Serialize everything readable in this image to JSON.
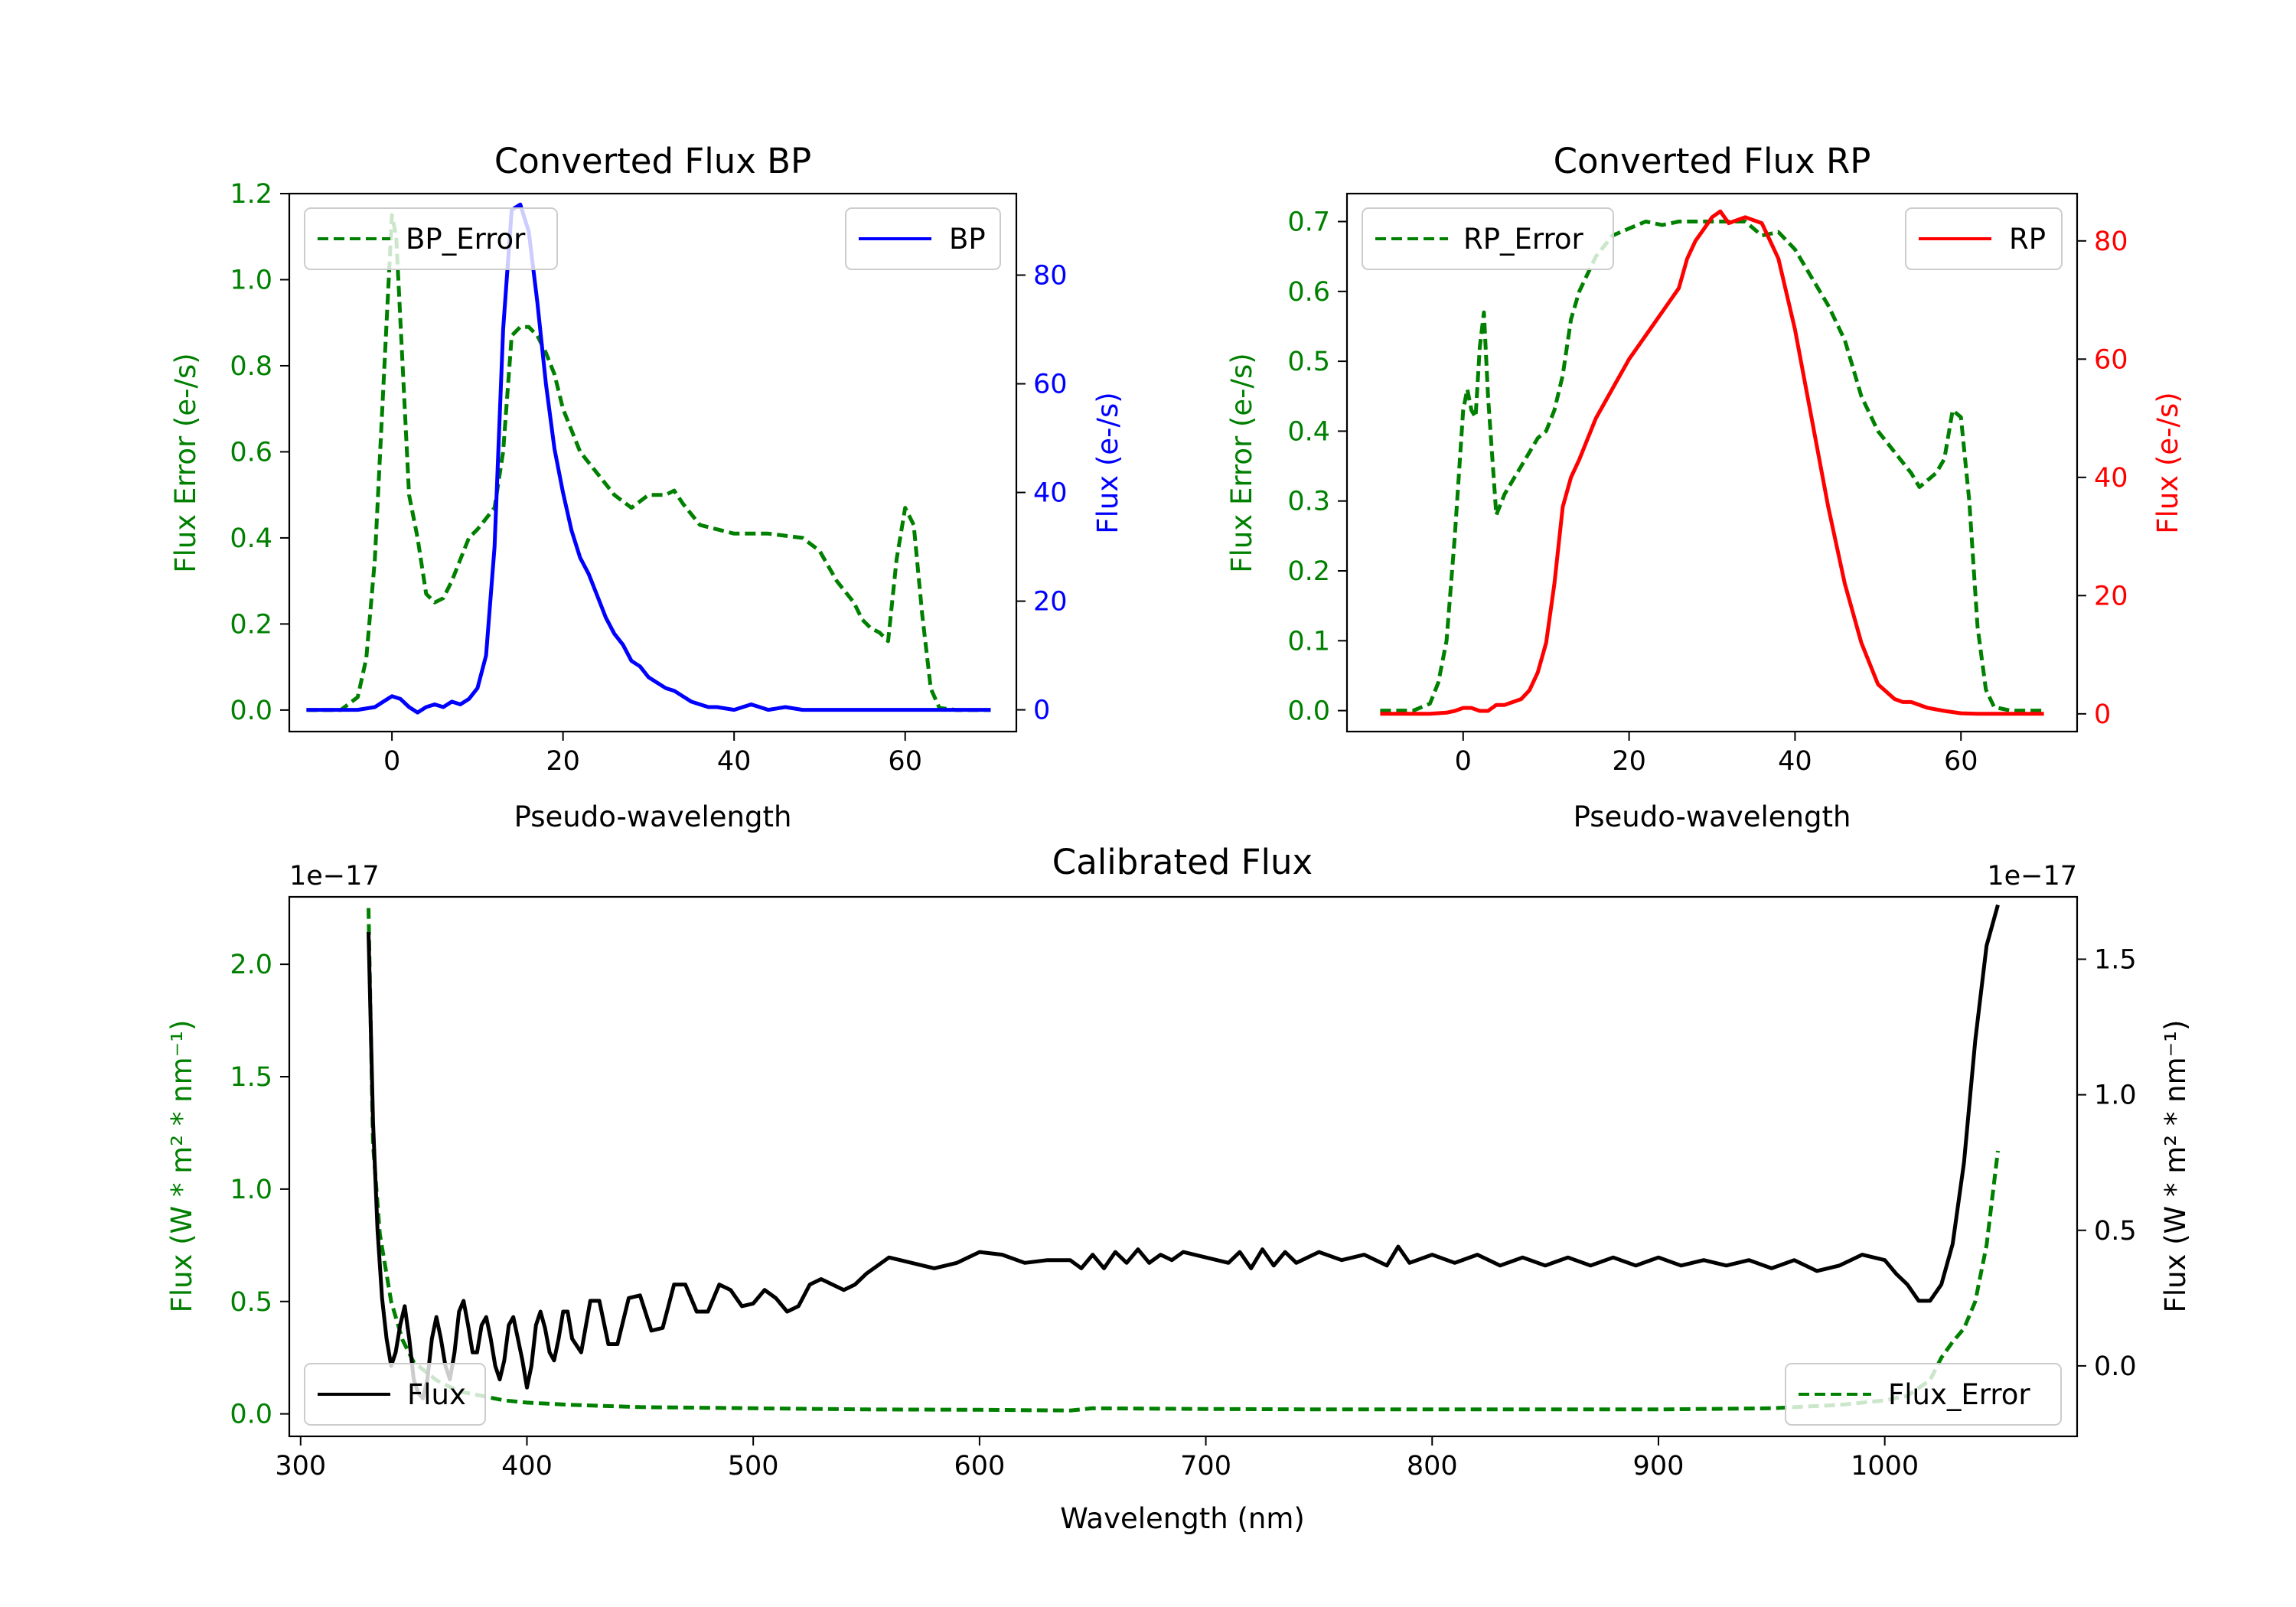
{
  "colors": {
    "error": "#008000",
    "bp": "#0000ff",
    "rp": "#ff0000",
    "flux": "#000000",
    "axis": "#000000"
  },
  "chart_data": [
    {
      "id": "bp",
      "type": "line",
      "title": "Converted Flux BP",
      "xlabel": "Pseudo-wavelength",
      "ylabel_left": "Flux Error (e-/s)",
      "ylabel_right": "Flux (e-/s)",
      "xlim": [
        -12,
        73
      ],
      "ylim_left": [
        -0.05,
        1.2
      ],
      "ylim_right": [
        -4,
        95
      ],
      "xticks": [
        {
          "v": 0,
          "label": "0"
        },
        {
          "v": 20,
          "label": "20"
        },
        {
          "v": 40,
          "label": "40"
        },
        {
          "v": 60,
          "label": "60"
        }
      ],
      "yticks_left": [
        {
          "v": 0,
          "label": "0.0"
        },
        {
          "v": 0.2,
          "label": "0.2"
        },
        {
          "v": 0.4,
          "label": "0.4"
        },
        {
          "v": 0.6,
          "label": "0.6"
        },
        {
          "v": 0.8,
          "label": "0.8"
        },
        {
          "v": 1.0,
          "label": "1.0"
        },
        {
          "v": 1.2,
          "label": "1.2"
        }
      ],
      "yticks_right": [
        {
          "v": 0,
          "label": "0"
        },
        {
          "v": 20,
          "label": "20"
        },
        {
          "v": 40,
          "label": "40"
        },
        {
          "v": 60,
          "label": "60"
        },
        {
          "v": 80,
          "label": "80"
        }
      ],
      "legend_left": {
        "label": "BP_Error",
        "position": "upper left"
      },
      "legend_right": {
        "label": "BP",
        "position": "upper right"
      },
      "series": [
        {
          "name": "BP_Error",
          "axis": "left",
          "style": "dashed",
          "color": "#008000",
          "x": [
            -10,
            -6,
            -4,
            -3,
            -2,
            -1,
            0,
            0.5,
            1,
            1.5,
            2,
            3,
            4,
            5,
            6,
            7,
            8,
            9,
            10,
            12,
            13,
            14,
            15,
            16,
            17,
            18,
            19,
            20,
            22,
            24,
            26,
            28,
            30,
            32,
            33,
            34,
            36,
            38,
            40,
            42,
            44,
            46,
            48,
            50,
            52,
            54,
            55,
            56,
            57,
            58,
            59,
            60,
            61,
            62,
            63,
            64,
            66,
            68,
            70
          ],
          "y": [
            0,
            0,
            0.03,
            0.12,
            0.35,
            0.75,
            1.15,
            1.1,
            0.9,
            0.7,
            0.5,
            0.4,
            0.27,
            0.25,
            0.26,
            0.3,
            0.35,
            0.4,
            0.42,
            0.47,
            0.6,
            0.87,
            0.89,
            0.89,
            0.87,
            0.83,
            0.78,
            0.7,
            0.6,
            0.55,
            0.5,
            0.47,
            0.5,
            0.5,
            0.51,
            0.48,
            0.43,
            0.42,
            0.41,
            0.41,
            0.41,
            0.405,
            0.4,
            0.37,
            0.3,
            0.25,
            0.21,
            0.19,
            0.18,
            0.16,
            0.35,
            0.47,
            0.43,
            0.22,
            0.05,
            0.005,
            0,
            0,
            0
          ]
        },
        {
          "name": "BP",
          "axis": "right",
          "style": "solid",
          "color": "#0000ff",
          "x": [
            -10,
            -6,
            -4,
            -2,
            -1,
            0,
            1,
            2,
            3,
            4,
            5,
            6,
            7,
            8,
            9,
            10,
            11,
            12,
            13,
            14,
            15,
            16,
            17,
            18,
            19,
            20,
            21,
            22,
            23,
            24,
            25,
            26,
            27,
            28,
            29,
            30,
            31,
            32,
            33,
            34,
            35,
            36,
            37,
            38,
            40,
            42,
            44,
            46,
            48,
            50,
            52,
            55,
            60,
            65,
            70
          ],
          "y": [
            0,
            0,
            0,
            0.5,
            1.5,
            2.5,
            2,
            0.5,
            -0.5,
            0.5,
            1,
            0.5,
            1.5,
            1,
            2,
            4,
            10,
            30,
            70,
            92,
            93,
            88,
            75,
            60,
            48,
            40,
            33,
            28,
            25,
            21,
            17,
            14,
            12,
            9,
            8,
            6,
            5,
            4,
            3.5,
            2.5,
            1.5,
            1,
            0.5,
            0.5,
            0,
            1,
            0,
            0.5,
            0,
            0,
            0,
            0,
            0,
            0,
            0
          ]
        }
      ]
    },
    {
      "id": "rp",
      "type": "line",
      "title": "Converted Flux RP",
      "xlabel": "Pseudo-wavelength",
      "ylabel_left": "Flux Error (e-/s)",
      "ylabel_right": "Flux (e-/s)",
      "xlim": [
        -14,
        74
      ],
      "ylim_left": [
        -0.03,
        0.74
      ],
      "ylim_right": [
        -3,
        88
      ],
      "xticks": [
        {
          "v": 0,
          "label": "0"
        },
        {
          "v": 20,
          "label": "20"
        },
        {
          "v": 40,
          "label": "40"
        },
        {
          "v": 60,
          "label": "60"
        }
      ],
      "yticks_left": [
        {
          "v": 0,
          "label": "0.0"
        },
        {
          "v": 0.1,
          "label": "0.1"
        },
        {
          "v": 0.2,
          "label": "0.2"
        },
        {
          "v": 0.3,
          "label": "0.3"
        },
        {
          "v": 0.4,
          "label": "0.4"
        },
        {
          "v": 0.5,
          "label": "0.5"
        },
        {
          "v": 0.6,
          "label": "0.6"
        },
        {
          "v": 0.7,
          "label": "0.7"
        }
      ],
      "yticks_right": [
        {
          "v": 0,
          "label": "0"
        },
        {
          "v": 20,
          "label": "20"
        },
        {
          "v": 40,
          "label": "40"
        },
        {
          "v": 60,
          "label": "60"
        },
        {
          "v": 80,
          "label": "80"
        }
      ],
      "legend_left": {
        "label": "RP_Error",
        "position": "upper left"
      },
      "legend_right": {
        "label": "RP",
        "position": "upper right"
      },
      "series": [
        {
          "name": "RP_Error",
          "axis": "left",
          "style": "dashed",
          "color": "#008000",
          "x": [
            -10,
            -6,
            -4,
            -3,
            -2,
            -1,
            0,
            0.5,
            1,
            1.5,
            2,
            2.5,
            3,
            4,
            5,
            6,
            7,
            8,
            9,
            10,
            11,
            12,
            13,
            14,
            16,
            18,
            20,
            22,
            24,
            26,
            28,
            30,
            32,
            34,
            36,
            38,
            40,
            42,
            44,
            46,
            48,
            50,
            52,
            54,
            55,
            56,
            57,
            58,
            59,
            60,
            61,
            62,
            63,
            64,
            66,
            68,
            70
          ],
          "y": [
            0,
            0,
            0.01,
            0.04,
            0.1,
            0.25,
            0.43,
            0.46,
            0.43,
            0.42,
            0.52,
            0.57,
            0.45,
            0.28,
            0.31,
            0.33,
            0.35,
            0.37,
            0.39,
            0.4,
            0.43,
            0.48,
            0.56,
            0.6,
            0.65,
            0.68,
            0.69,
            0.7,
            0.695,
            0.7,
            0.7,
            0.7,
            0.7,
            0.7,
            0.68,
            0.685,
            0.66,
            0.62,
            0.58,
            0.53,
            0.45,
            0.4,
            0.37,
            0.34,
            0.32,
            0.33,
            0.34,
            0.36,
            0.43,
            0.42,
            0.3,
            0.12,
            0.03,
            0.005,
            0,
            0,
            0
          ]
        },
        {
          "name": "RP",
          "axis": "right",
          "style": "solid",
          "color": "#ff0000",
          "x": [
            -10,
            -4,
            -2,
            -1,
            0,
            1,
            2,
            3,
            4,
            5,
            6,
            7,
            8,
            9,
            10,
            11,
            12,
            13,
            14,
            16,
            18,
            20,
            22,
            24,
            26,
            27,
            28,
            29,
            30,
            31,
            32,
            34,
            36,
            37,
            38,
            40,
            42,
            44,
            46,
            48,
            50,
            52,
            53,
            54,
            56,
            58,
            60,
            62,
            65,
            70
          ],
          "y": [
            0,
            0,
            0.2,
            0.5,
            1,
            1,
            0.5,
            0.5,
            1.5,
            1.5,
            2,
            2.5,
            4,
            7,
            12,
            22,
            35,
            40,
            43,
            50,
            55,
            60,
            64,
            68,
            72,
            77,
            80,
            82,
            84,
            85,
            83,
            84,
            83,
            80,
            77,
            65,
            50,
            35,
            22,
            12,
            5,
            2.5,
            2,
            2,
            1,
            0.5,
            0.1,
            0,
            0,
            0
          ]
        }
      ]
    },
    {
      "id": "calibrated",
      "type": "line",
      "title": "Calibrated Flux",
      "xlabel": "Wavelength (nm)",
      "ylabel_left": "Flux (W * m² * nm⁻¹)",
      "ylabel_right": "Flux (W * m² * nm⁻¹)",
      "offset_left": "1e−17",
      "offset_right": "1e−17",
      "xlim": [
        295,
        1085
      ],
      "ylim_left": [
        -0.1,
        2.3
      ],
      "ylim_right": [
        -0.26,
        1.73
      ],
      "xticks": [
        {
          "v": 300,
          "label": "300"
        },
        {
          "v": 400,
          "label": "400"
        },
        {
          "v": 500,
          "label": "500"
        },
        {
          "v": 600,
          "label": "600"
        },
        {
          "v": 700,
          "label": "700"
        },
        {
          "v": 800,
          "label": "800"
        },
        {
          "v": 900,
          "label": "900"
        },
        {
          "v": 1000,
          "label": "1000"
        }
      ],
      "yticks_left": [
        {
          "v": 0,
          "label": "0.0"
        },
        {
          "v": 0.5,
          "label": "0.5"
        },
        {
          "v": 1.0,
          "label": "1.0"
        },
        {
          "v": 1.5,
          "label": "1.5"
        },
        {
          "v": 2.0,
          "label": "2.0"
        }
      ],
      "yticks_right": [
        {
          "v": 0,
          "label": "0.0"
        },
        {
          "v": 0.5,
          "label": "0.5"
        },
        {
          "v": 1.0,
          "label": "1.0"
        },
        {
          "v": 1.5,
          "label": "1.5"
        }
      ],
      "legend_left": {
        "label": "Flux",
        "position": "lower left"
      },
      "legend_right": {
        "label": "Flux_Error",
        "position": "lower right"
      },
      "series": [
        {
          "name": "Flux_Error",
          "axis": "left",
          "style": "dashed",
          "color": "#008000",
          "x": [
            330,
            332,
            335,
            340,
            345,
            350,
            360,
            370,
            380,
            390,
            400,
            420,
            450,
            500,
            550,
            600,
            640,
            650,
            700,
            750,
            800,
            850,
            900,
            950,
            980,
            1000,
            1010,
            1020,
            1025,
            1030,
            1035,
            1040,
            1045,
            1050
          ],
          "y": [
            2.25,
            1.2,
            0.8,
            0.5,
            0.33,
            0.23,
            0.15,
            0.1,
            0.08,
            0.06,
            0.05,
            0.04,
            0.03,
            0.025,
            0.02,
            0.018,
            0.015,
            0.025,
            0.022,
            0.02,
            0.02,
            0.02,
            0.02,
            0.025,
            0.04,
            0.06,
            0.08,
            0.15,
            0.25,
            0.32,
            0.38,
            0.5,
            0.75,
            1.17
          ]
        },
        {
          "name": "Flux",
          "axis": "right",
          "style": "solid",
          "color": "#000000",
          "x": [
            330,
            332,
            334,
            336,
            338,
            340,
            342,
            344,
            346,
            348,
            350,
            352,
            354,
            356,
            358,
            360,
            362,
            364,
            366,
            368,
            370,
            372,
            374,
            376,
            378,
            380,
            382,
            384,
            386,
            388,
            390,
            392,
            394,
            396,
            398,
            400,
            402,
            404,
            406,
            408,
            410,
            412,
            414,
            416,
            418,
            420,
            424,
            428,
            432,
            436,
            440,
            445,
            450,
            455,
            460,
            465,
            470,
            475,
            480,
            485,
            490,
            495,
            500,
            505,
            510,
            515,
            520,
            525,
            530,
            535,
            540,
            545,
            550,
            560,
            570,
            580,
            590,
            600,
            610,
            620,
            630,
            640,
            645,
            650,
            655,
            660,
            665,
            670,
            675,
            680,
            685,
            690,
            700,
            710,
            715,
            720,
            725,
            730,
            735,
            740,
            750,
            760,
            770,
            780,
            785,
            790,
            800,
            810,
            820,
            830,
            840,
            850,
            860,
            870,
            880,
            890,
            900,
            910,
            920,
            930,
            940,
            950,
            960,
            970,
            980,
            990,
            1000,
            1005,
            1010,
            1015,
            1020,
            1025,
            1030,
            1035,
            1040,
            1045,
            1050
          ],
          "y": [
            1.6,
            0.9,
            0.5,
            0.25,
            0.1,
            0.0,
            0.05,
            0.15,
            0.22,
            0.1,
            -0.05,
            -0.1,
            -0.12,
            -0.05,
            0.1,
            0.18,
            0.1,
            0.0,
            -0.05,
            0.05,
            0.2,
            0.24,
            0.15,
            0.05,
            0.05,
            0.15,
            0.18,
            0.1,
            0.0,
            -0.05,
            0.02,
            0.15,
            0.18,
            0.1,
            0.02,
            -0.08,
            0.0,
            0.15,
            0.2,
            0.14,
            0.05,
            0.02,
            0.1,
            0.2,
            0.2,
            0.1,
            0.05,
            0.24,
            0.24,
            0.08,
            0.08,
            0.25,
            0.26,
            0.13,
            0.14,
            0.3,
            0.3,
            0.2,
            0.2,
            0.3,
            0.28,
            0.22,
            0.23,
            0.28,
            0.25,
            0.2,
            0.22,
            0.3,
            0.32,
            0.3,
            0.28,
            0.3,
            0.34,
            0.4,
            0.38,
            0.36,
            0.38,
            0.42,
            0.41,
            0.38,
            0.39,
            0.39,
            0.36,
            0.41,
            0.36,
            0.42,
            0.38,
            0.43,
            0.38,
            0.41,
            0.39,
            0.42,
            0.4,
            0.38,
            0.42,
            0.36,
            0.43,
            0.37,
            0.42,
            0.38,
            0.42,
            0.39,
            0.41,
            0.37,
            0.44,
            0.38,
            0.41,
            0.38,
            0.41,
            0.37,
            0.4,
            0.37,
            0.4,
            0.37,
            0.4,
            0.37,
            0.4,
            0.37,
            0.39,
            0.37,
            0.39,
            0.36,
            0.39,
            0.35,
            0.37,
            0.41,
            0.39,
            0.34,
            0.3,
            0.24,
            0.24,
            0.3,
            0.45,
            0.75,
            1.2,
            1.55,
            1.7
          ]
        }
      ]
    }
  ]
}
